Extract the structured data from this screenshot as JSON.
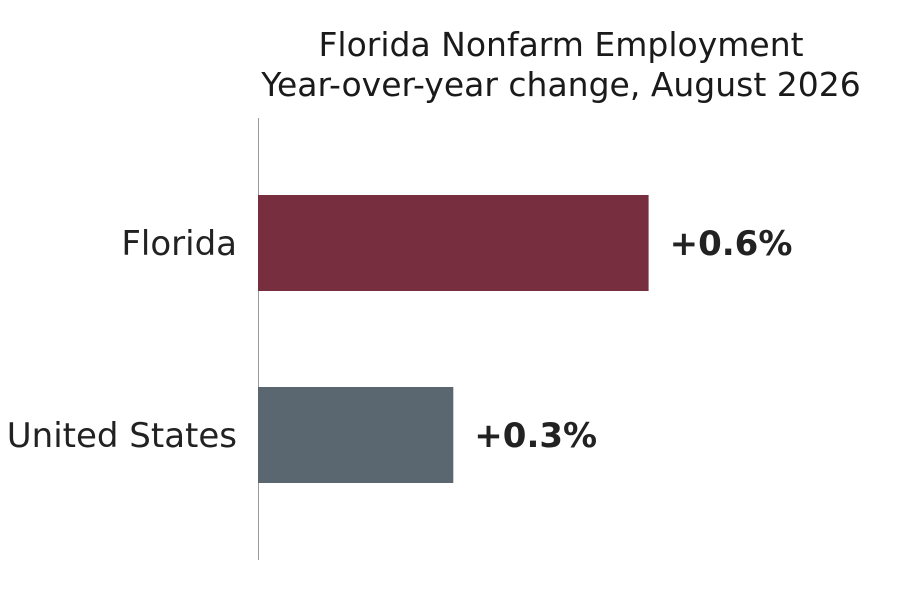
{
  "chart_data": {
    "type": "bar",
    "orientation": "horizontal",
    "title": "Florida Nonfarm Employment",
    "subtitle": "Year-over-year change, August 2026",
    "categories": [
      "Florida",
      "United States"
    ],
    "values": [
      0.6,
      0.3
    ],
    "value_labels": [
      "+0.6%",
      "+0.3%"
    ],
    "colors": [
      "#772f40",
      "#5b6770"
    ],
    "xlim": [
      0,
      0.9
    ],
    "grid": false,
    "legend": "none"
  }
}
